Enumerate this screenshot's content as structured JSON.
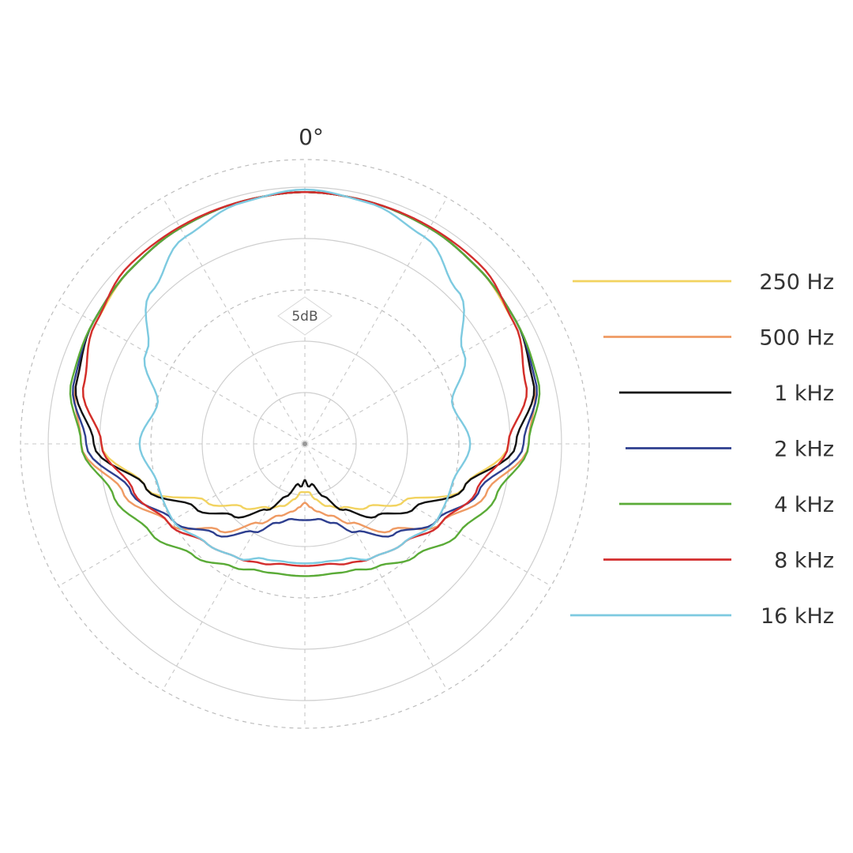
{
  "chart_data": {
    "type": "polar",
    "angle_label": "0°",
    "scale_label": "5dB",
    "grid": true,
    "radial_rings": 5,
    "spokes_every_deg": 30,
    "legend_position": "right",
    "series": [
      {
        "name": "250 Hz",
        "color": "#f2d360",
        "angles_deg": [
          0,
          15,
          30,
          45,
          60,
          75,
          90,
          105,
          120,
          135,
          150,
          160,
          170,
          175,
          180
        ],
        "radius_norm": [
          0.99,
          0.985,
          0.98,
          0.97,
          0.95,
          0.9,
          0.8,
          0.65,
          0.45,
          0.35,
          0.29,
          0.26,
          0.22,
          0.19,
          0.19
        ]
      },
      {
        "name": "500 Hz",
        "color": "#ef9a63",
        "angles_deg": [
          0,
          15,
          30,
          45,
          60,
          75,
          90,
          105,
          120,
          135,
          150,
          160,
          170,
          175,
          180
        ],
        "radius_norm": [
          0.99,
          0.985,
          0.98,
          0.97,
          0.96,
          0.93,
          0.88,
          0.74,
          0.62,
          0.48,
          0.36,
          0.3,
          0.27,
          0.25,
          0.23
        ]
      },
      {
        "name": "1 kHz",
        "color": "#111111",
        "angles_deg": [
          0,
          15,
          30,
          45,
          60,
          75,
          90,
          105,
          120,
          135,
          150,
          160,
          170,
          175,
          180
        ],
        "radius_norm": [
          0.99,
          0.985,
          0.98,
          0.97,
          0.96,
          0.93,
          0.83,
          0.65,
          0.5,
          0.4,
          0.3,
          0.22,
          0.16,
          0.17,
          0.14
        ]
      },
      {
        "name": "2 kHz",
        "color": "#2e3f8f",
        "angles_deg": [
          0,
          15,
          30,
          45,
          60,
          75,
          90,
          105,
          120,
          135,
          150,
          160,
          170,
          175,
          180
        ],
        "radius_norm": [
          0.99,
          0.985,
          0.98,
          0.97,
          0.96,
          0.94,
          0.86,
          0.71,
          0.6,
          0.5,
          0.4,
          0.33,
          0.3,
          0.3,
          0.3
        ]
      },
      {
        "name": "4 kHz",
        "color": "#5aab37",
        "angles_deg": [
          0,
          15,
          30,
          45,
          60,
          75,
          90,
          105,
          120,
          135,
          150,
          160,
          170,
          175,
          180
        ],
        "radius_norm": [
          0.99,
          0.985,
          0.98,
          0.97,
          0.96,
          0.95,
          0.88,
          0.78,
          0.7,
          0.62,
          0.56,
          0.53,
          0.52,
          0.52,
          0.52
        ]
      },
      {
        "name": "8 kHz",
        "color": "#d32d2d",
        "angles_deg": [
          0,
          15,
          30,
          45,
          60,
          75,
          90,
          105,
          120,
          135,
          150,
          160,
          170,
          175,
          180
        ],
        "radius_norm": [
          0.99,
          0.985,
          0.985,
          0.985,
          0.95,
          0.9,
          0.8,
          0.7,
          0.62,
          0.55,
          0.52,
          0.5,
          0.48,
          0.48,
          0.48
        ]
      },
      {
        "name": "16 kHz",
        "color": "#7dcae0",
        "angles_deg": [
          0,
          15,
          30,
          45,
          60,
          75,
          90,
          105,
          120,
          135,
          150,
          160,
          170,
          175,
          180
        ],
        "radius_norm": [
          1.0,
          0.98,
          0.94,
          0.85,
          0.72,
          0.6,
          0.65,
          0.6,
          0.6,
          0.55,
          0.52,
          0.48,
          0.47,
          0.47,
          0.47
        ]
      }
    ]
  }
}
